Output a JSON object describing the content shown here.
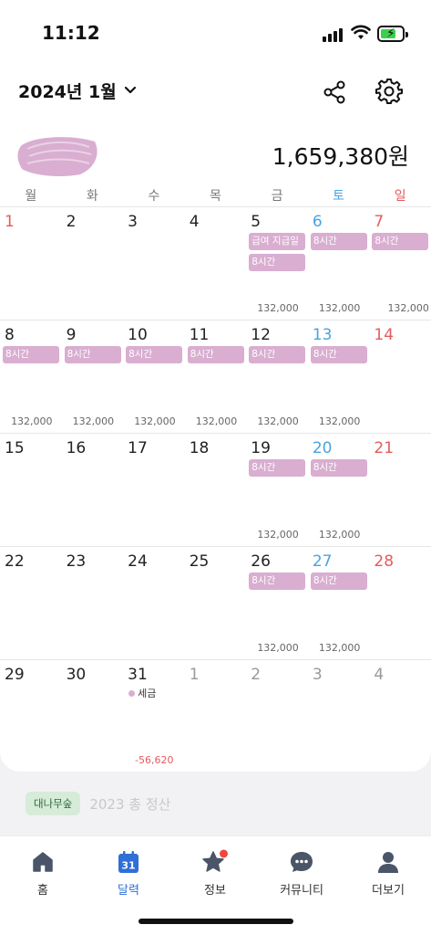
{
  "status": {
    "time": "11:12"
  },
  "header": {
    "month_title": "2024년 1월"
  },
  "summary": {
    "total": "1,659,380원"
  },
  "weekdays": [
    "월",
    "화",
    "수",
    "목",
    "금",
    "토",
    "일"
  ],
  "weeks": [
    {
      "days": [
        {
          "num": "1",
          "kind": "holiday"
        },
        {
          "num": "2"
        },
        {
          "num": "3"
        },
        {
          "num": "4"
        },
        {
          "num": "5",
          "chips": [
            "급여 지급일",
            "8시간"
          ],
          "amount": "132,000"
        },
        {
          "num": "6",
          "kind": "sat",
          "chips": [
            "8시간"
          ],
          "amount": "132,000"
        },
        {
          "num": "7",
          "kind": "sun",
          "chips": [
            "8시간"
          ],
          "amount": "132,000"
        }
      ]
    },
    {
      "days": [
        {
          "num": "8",
          "chips": [
            "8시간"
          ],
          "amount": "132,000"
        },
        {
          "num": "9",
          "chips": [
            "8시간"
          ],
          "amount": "132,000"
        },
        {
          "num": "10",
          "chips": [
            "8시간"
          ],
          "amount": "132,000"
        },
        {
          "num": "11",
          "chips": [
            "8시간"
          ],
          "amount": "132,000"
        },
        {
          "num": "12",
          "chips": [
            "8시간"
          ],
          "amount": "132,000"
        },
        {
          "num": "13",
          "kind": "sat",
          "chips": [
            "8시간"
          ],
          "amount": "132,000"
        },
        {
          "num": "14",
          "kind": "sun"
        }
      ]
    },
    {
      "days": [
        {
          "num": "15"
        },
        {
          "num": "16"
        },
        {
          "num": "17"
        },
        {
          "num": "18"
        },
        {
          "num": "19",
          "chips": [
            "8시간"
          ],
          "amount": "132,000"
        },
        {
          "num": "20",
          "kind": "sat",
          "chips": [
            "8시간"
          ],
          "amount": "132,000"
        },
        {
          "num": "21",
          "kind": "sun"
        }
      ]
    },
    {
      "days": [
        {
          "num": "22"
        },
        {
          "num": "23"
        },
        {
          "num": "24"
        },
        {
          "num": "25"
        },
        {
          "num": "26",
          "chips": [
            "8시간"
          ],
          "amount": "132,000"
        },
        {
          "num": "27",
          "kind": "sat",
          "chips": [
            "8시간"
          ],
          "amount": "132,000"
        },
        {
          "num": "28",
          "kind": "sun"
        }
      ]
    },
    {
      "days": [
        {
          "num": "29"
        },
        {
          "num": "30"
        },
        {
          "num": "31",
          "tag": "세금"
        },
        {
          "num": "1",
          "kind": "other"
        },
        {
          "num": "2",
          "kind": "other"
        },
        {
          "num": "3",
          "kind": "other"
        },
        {
          "num": "4",
          "kind": "other"
        }
      ]
    }
  ],
  "tax_amount": "-56,620",
  "banner": {
    "badge": "대나무숲",
    "text": "2023 총 정산"
  },
  "tabs": [
    {
      "label": "홈",
      "icon": "home-icon"
    },
    {
      "label": "달력",
      "icon": "calendar-icon",
      "active": true,
      "badge_text": "31"
    },
    {
      "label": "정보",
      "icon": "star-icon",
      "notify": true
    },
    {
      "label": "커뮤니티",
      "icon": "chat-bubble-icon"
    },
    {
      "label": "더보기",
      "icon": "person-icon"
    }
  ],
  "colors": {
    "chip": "#d9aed0",
    "saturday": "#4aa3e0",
    "sunday": "#e55b5b",
    "active_tab": "#2f6fd6"
  }
}
